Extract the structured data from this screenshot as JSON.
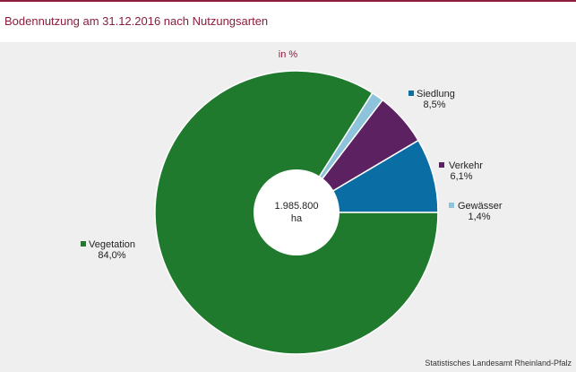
{
  "header": {
    "title": "Bodennutzung am 31.12.2016 nach Nutzungsarten"
  },
  "chart_data": {
    "type": "pie",
    "variant": "donut",
    "unit_label": "in %",
    "center_label": [
      "1.985.800",
      "ha"
    ],
    "slices": [
      {
        "name": "Siedlung",
        "value": 8.5,
        "label": "8,5%",
        "color": "#0a6ea4"
      },
      {
        "name": "Verkehr",
        "value": 6.1,
        "label": "6,1%",
        "color": "#5b2160"
      },
      {
        "name": "Gewässer",
        "value": 1.4,
        "label": "1,4%",
        "color": "#8ec3dc"
      },
      {
        "name": "Vegetation",
        "value": 84.0,
        "label": "84,0%",
        "color": "#1f7a2e"
      }
    ]
  },
  "footer": {
    "source": "Statistisches Landesamt Rheinland-Pfalz"
  },
  "colors": {
    "accent": "#8c1d3c",
    "panel_bg": "#efefef"
  }
}
